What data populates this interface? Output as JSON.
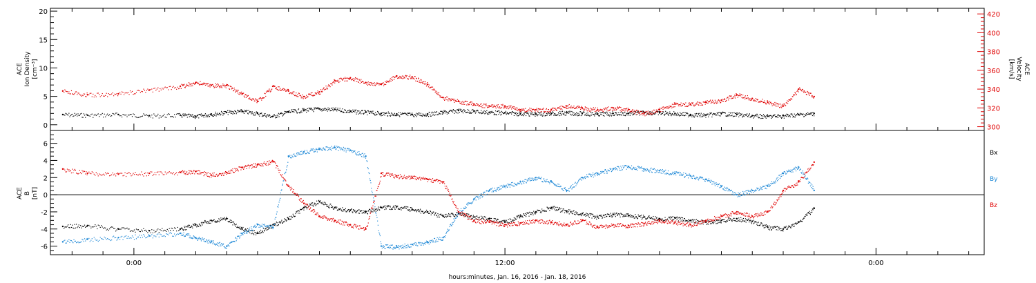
{
  "chart_data": [
    {
      "type": "scatter",
      "panel": "top",
      "ylabel_left": [
        "ACE",
        "Ion Density",
        "[cm⁻³]"
      ],
      "ylabel_right": [
        "ACE",
        "Velocity",
        "[km/s]"
      ],
      "ylim_left": [
        -1,
        20.5
      ],
      "yticks_left": [
        0,
        5,
        10,
        15,
        20
      ],
      "ylim_right": [
        296,
        426
      ],
      "yticks_right": [
        300,
        320,
        340,
        360,
        380,
        400,
        420
      ],
      "series": [
        {
          "axis": "left",
          "color": "#000000",
          "x": [
            -2.3,
            -1.5,
            -0.5,
            0.5,
            1.5,
            2.0,
            2.5,
            3.0,
            3.5,
            4.0,
            4.5,
            5.0,
            5.5,
            6.0,
            6.5,
            7.0,
            7.5,
            8.0,
            8.5,
            9.0,
            9.5,
            10.0,
            10.5,
            11.0,
            11.5,
            12.0,
            12.5,
            13.0,
            13.5,
            14.0,
            14.5,
            15.0,
            15.5,
            16.0,
            16.5,
            17.0,
            17.5,
            18.0,
            18.5,
            19.0,
            19.5,
            20.0,
            20.5,
            21.0,
            21.5,
            22.0
          ],
          "y": [
            1.8,
            1.7,
            1.8,
            1.6,
            1.7,
            1.5,
            1.9,
            2.2,
            2.4,
            2.0,
            1.5,
            2.3,
            2.6,
            2.8,
            2.7,
            2.4,
            2.2,
            2.0,
            1.9,
            1.8,
            1.9,
            2.2,
            2.5,
            2.4,
            2.2,
            2.1,
            2.0,
            1.9,
            2.0,
            2.1,
            2.0,
            1.9,
            2.0,
            2.0,
            2.2,
            2.1,
            2.0,
            1.8,
            1.7,
            2.0,
            1.8,
            1.6,
            1.5,
            1.6,
            1.8,
            2.0
          ]
        },
        {
          "axis": "right",
          "color": "#e00000",
          "x": [
            -2.3,
            -1.5,
            -0.5,
            0.5,
            1.5,
            2.0,
            2.5,
            3.0,
            3.5,
            4.0,
            4.5,
            5.0,
            5.5,
            6.0,
            6.5,
            7.0,
            7.5,
            8.0,
            8.5,
            9.0,
            9.5,
            10.0,
            10.5,
            11.0,
            11.5,
            12.0,
            12.5,
            13.0,
            13.5,
            14.0,
            14.5,
            15.0,
            15.5,
            16.0,
            16.5,
            17.0,
            17.5,
            18.0,
            18.5,
            19.0,
            19.5,
            20.0,
            20.5,
            21.0,
            21.5,
            22.0
          ],
          "y": [
            338,
            334,
            335,
            339,
            343,
            347,
            344,
            344,
            335,
            327,
            343,
            338,
            332,
            337,
            349,
            352,
            347,
            345,
            354,
            353,
            345,
            331,
            327,
            324,
            322,
            322,
            318,
            318,
            318,
            322,
            320,
            318,
            320,
            318,
            314,
            318,
            324,
            324,
            326,
            328,
            334,
            330,
            326,
            322,
            340,
            332
          ]
        }
      ]
    },
    {
      "type": "scatter",
      "panel": "bottom",
      "ylabel": [
        "ACE",
        "B",
        "[nT]"
      ],
      "ylim": [
        -7,
        7.5
      ],
      "yticks": [
        -6,
        -4,
        -2,
        0,
        2,
        4,
        6
      ],
      "zero_line": true,
      "legend": [
        "Bx",
        "By",
        "Bz"
      ],
      "series": [
        {
          "name": "Bx",
          "color": "#000000",
          "x": [
            -2.3,
            -1.5,
            -0.5,
            0.5,
            1.5,
            2.0,
            2.5,
            3.0,
            3.5,
            4.0,
            4.5,
            5.0,
            5.5,
            6.0,
            6.5,
            7.0,
            7.5,
            8.0,
            8.5,
            9.0,
            9.5,
            10.0,
            10.5,
            11.0,
            11.5,
            12.0,
            12.5,
            13.0,
            13.5,
            14.0,
            14.5,
            15.0,
            15.5,
            16.0,
            16.5,
            17.0,
            17.5,
            18.0,
            18.5,
            19.0,
            19.5,
            20.0,
            20.5,
            21.0,
            21.5,
            22.0
          ],
          "y": [
            -3.7,
            -3.6,
            -4.0,
            -4.2,
            -4.0,
            -3.5,
            -3.0,
            -2.8,
            -4.0,
            -4.5,
            -3.5,
            -2.8,
            -1.5,
            -0.8,
            -1.5,
            -1.8,
            -2.0,
            -1.5,
            -1.4,
            -1.7,
            -2.0,
            -2.5,
            -2.2,
            -2.6,
            -2.8,
            -3.2,
            -2.5,
            -2.0,
            -1.5,
            -1.9,
            -2.2,
            -2.6,
            -2.3,
            -2.4,
            -2.6,
            -2.8,
            -2.7,
            -3.0,
            -3.2,
            -3.0,
            -2.8,
            -3.1,
            -3.8,
            -4.0,
            -3.2,
            -1.6
          ]
        },
        {
          "name": "By",
          "color": "#1e88d6",
          "x": [
            -2.3,
            -1.5,
            -0.5,
            0.5,
            1.5,
            2.0,
            2.5,
            3.0,
            3.5,
            4.0,
            4.5,
            5.0,
            5.5,
            6.0,
            6.5,
            7.0,
            7.5,
            8.0,
            8.5,
            9.0,
            9.5,
            10.0,
            10.5,
            11.0,
            11.5,
            12.0,
            12.5,
            13.0,
            13.5,
            14.0,
            14.5,
            15.0,
            15.5,
            16.0,
            16.5,
            17.0,
            17.5,
            18.0,
            18.5,
            19.0,
            19.5,
            20.0,
            20.5,
            21.0,
            21.5,
            22.0
          ],
          "y": [
            -5.5,
            -5.2,
            -5.0,
            -4.8,
            -4.5,
            -5.0,
            -5.5,
            -6.0,
            -4.5,
            -3.5,
            -3.8,
            4.5,
            5.0,
            5.3,
            5.5,
            5.2,
            4.5,
            -6.0,
            -6.1,
            -5.8,
            -5.5,
            -5.0,
            -2.0,
            -0.5,
            0.5,
            1.0,
            1.5,
            2.0,
            1.5,
            0.5,
            2.0,
            2.5,
            3.0,
            3.3,
            3.0,
            2.8,
            2.5,
            2.2,
            1.8,
            1.0,
            0.0,
            0.5,
            1.0,
            2.5,
            3.2,
            0.5
          ]
        },
        {
          "name": "Bz",
          "color": "#e00000",
          "x": [
            -2.3,
            -1.5,
            -0.5,
            0.5,
            1.5,
            2.0,
            2.5,
            3.0,
            3.5,
            4.0,
            4.5,
            5.0,
            5.5,
            6.0,
            6.5,
            7.0,
            7.5,
            8.0,
            8.5,
            9.0,
            9.5,
            10.0,
            10.5,
            11.0,
            11.5,
            12.0,
            12.5,
            13.0,
            13.5,
            14.0,
            14.5,
            15.0,
            15.5,
            16.0,
            16.5,
            17.0,
            17.5,
            18.0,
            18.5,
            19.0,
            19.5,
            20.0,
            20.5,
            21.0,
            21.5,
            22.0
          ],
          "y": [
            3.0,
            2.5,
            2.4,
            2.5,
            2.6,
            2.7,
            2.3,
            2.6,
            3.2,
            3.5,
            3.9,
            1.0,
            -1.0,
            -2.5,
            -3.0,
            -3.5,
            -4.0,
            2.5,
            2.2,
            2.0,
            1.8,
            1.5,
            -2.0,
            -3.0,
            -3.2,
            -3.5,
            -3.3,
            -3.0,
            -3.2,
            -3.5,
            -3.0,
            -3.8,
            -3.5,
            -3.6,
            -3.4,
            -3.0,
            -3.2,
            -3.5,
            -3.0,
            -2.5,
            -2.0,
            -2.5,
            -2.0,
            0.5,
            1.5,
            3.8
          ]
        }
      ]
    }
  ],
  "x_axis": {
    "range_hours": [
      -2.7,
      27.5
    ],
    "major_ticks": [
      0,
      12,
      24
    ],
    "major_tick_labels": [
      "0:00",
      "12:00",
      "0:00"
    ],
    "xlabel": "hours:minutes, Jan. 16, 2016 - Jan. 18, 2016"
  },
  "colors": {
    "black": "#000000",
    "red": "#e00000",
    "blue": "#1e88d6"
  }
}
